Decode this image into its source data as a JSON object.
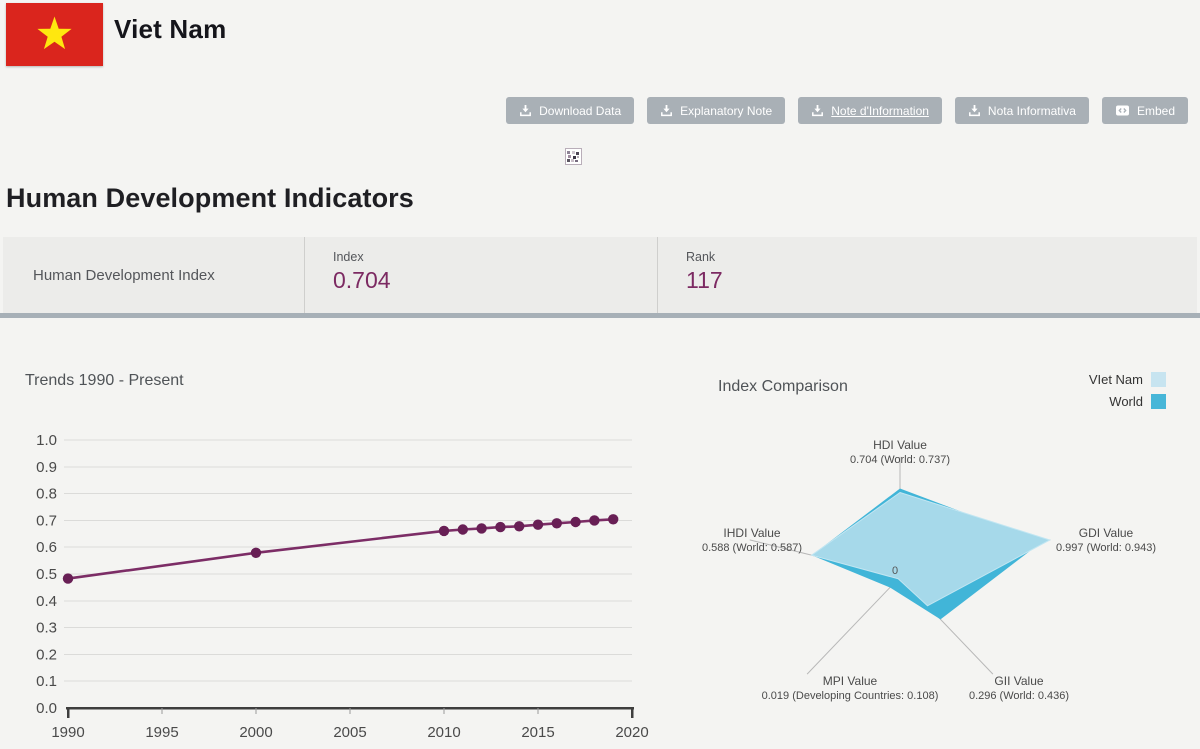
{
  "header": {
    "country": "Viet Nam",
    "flag_colors": {
      "red": "#da251d",
      "star_yellow": "#ffe70f"
    }
  },
  "toolbar": {
    "buttons": [
      {
        "label": "Download Data",
        "icon": "download-icon"
      },
      {
        "label": "Explanatory Note",
        "icon": "download-icon"
      },
      {
        "label": "Note d'Information",
        "icon": "download-icon",
        "underlined": true
      },
      {
        "label": "Nota Informativa",
        "icon": "download-icon"
      },
      {
        "label": "Embed",
        "icon": "embed-code-icon"
      }
    ],
    "button_color": "#a9b0b6"
  },
  "page_title": "Human Development Indicators",
  "summary": {
    "row_label": "Human Development Index",
    "index_label": "Index",
    "index_value": "0.704",
    "rank_label": "Rank",
    "rank_value": "117",
    "value_color": "#7c2a62"
  },
  "chart_data": [
    {
      "type": "line",
      "title": "Trends 1990 - Present",
      "series_name": "Human Development Index",
      "x": [
        1990,
        2000,
        2010,
        2011,
        2012,
        2013,
        2014,
        2015,
        2016,
        2017,
        2018,
        2019
      ],
      "values": [
        0.483,
        0.579,
        0.661,
        0.666,
        0.67,
        0.675,
        0.678,
        0.684,
        0.689,
        0.694,
        0.7,
        0.704
      ],
      "xlim": [
        1990,
        2020
      ],
      "ylim": [
        0,
        1
      ],
      "xticks": [
        1990,
        1995,
        2000,
        2005,
        2010,
        2015,
        2020
      ],
      "yticks": [
        1.0,
        0.9,
        0.8,
        0.7,
        0.6,
        0.5,
        0.4,
        0.3,
        0.2,
        0.1,
        0.0
      ],
      "grid": true,
      "line_color": "#7c2d66",
      "marker_color": "#681f55"
    },
    {
      "type": "radar",
      "title": "Index Comparison",
      "center_label": "0",
      "legend_position": "top-right",
      "axes": [
        {
          "label": "HDI Value",
          "sublabel": "0.704 (World: 0.737)"
        },
        {
          "label": "GDI Value",
          "sublabel": "0.997 (World: 0.943)"
        },
        {
          "label": "GII Value",
          "sublabel": "0.296 (World: 0.436)"
        },
        {
          "label": "MPI Value",
          "sublabel": "0.019 (Developing Countries: 0.108)"
        },
        {
          "label": "IHDI Value",
          "sublabel": "0.588 (World: 0.587)"
        }
      ],
      "max": 1.0,
      "series": [
        {
          "name": "VIet Nam",
          "color": "#a6d9ea",
          "legend_color": "#c7e4f0",
          "values": [
            0.704,
            0.997,
            0.296,
            0.019,
            0.588
          ]
        },
        {
          "name": "World",
          "color": "#41b5d8",
          "legend_color": "#47b6d8",
          "values": [
            0.737,
            0.943,
            0.436,
            0.108,
            0.587
          ]
        }
      ]
    }
  ]
}
